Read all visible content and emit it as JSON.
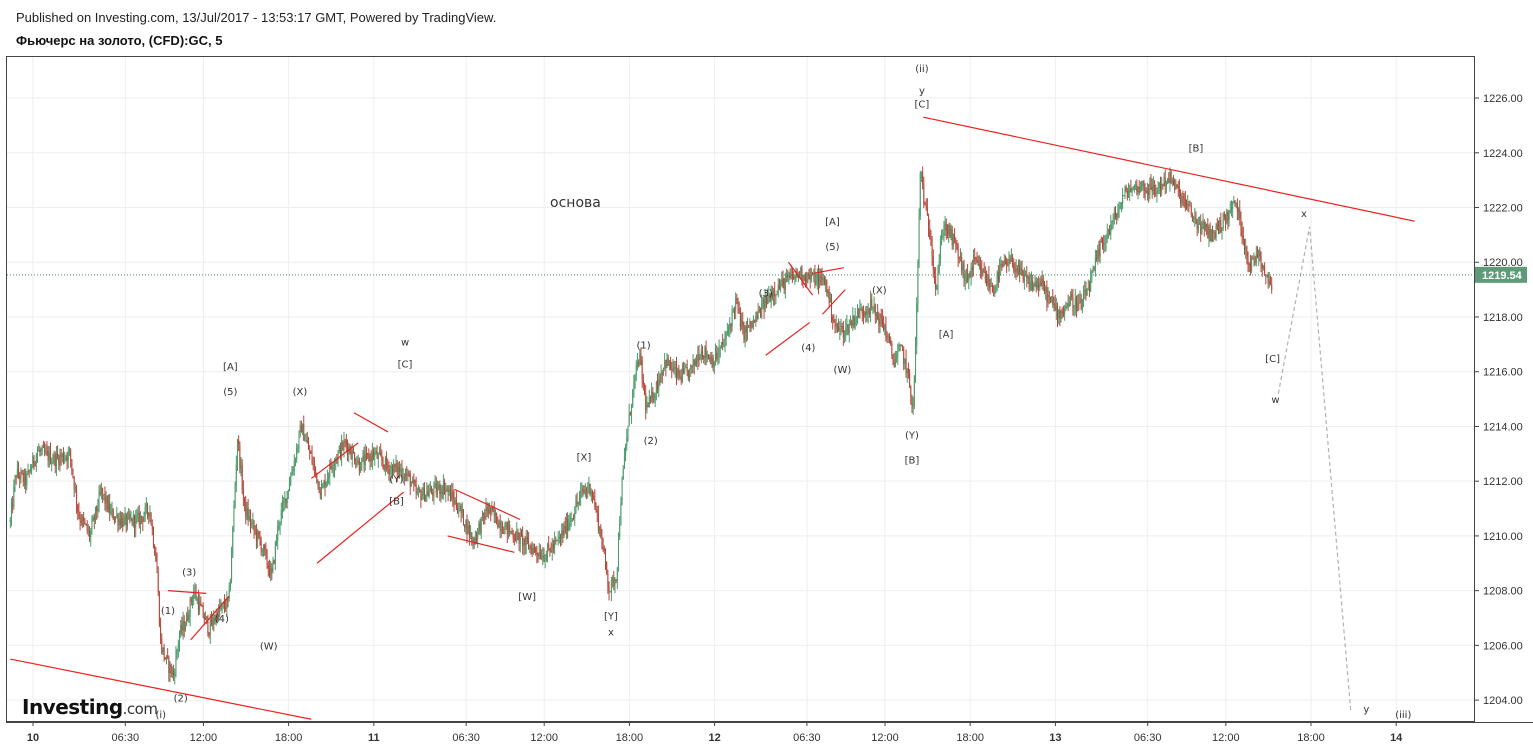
{
  "header": {
    "published": "Published on Investing.com, 13/Jul/2017 - 13:53:17 GMT, Powered by TradingView.",
    "instrument": "Фьючерс на золото, (CFD):GC, 5"
  },
  "logo": {
    "main": "Investing",
    "suffix": ".com"
  },
  "colors": {
    "up": "#4a9a6a",
    "down": "#b5473a",
    "trendline": "#e8221f",
    "price_line": "#4a8a6a",
    "badge": "#5f9b79"
  },
  "chart_data": {
    "type": "candlestick",
    "ylim": [
      1203.2,
      1227.5
    ],
    "y_ticks": [
      "1204.00",
      "1206.00",
      "1208.00",
      "1210.00",
      "1212.00",
      "1214.00",
      "1216.00",
      "1218.00",
      "1220.00",
      "1222.00",
      "1224.00",
      "1226.00"
    ],
    "x_ticks": [
      {
        "label": "10",
        "t": 0,
        "bold": true
      },
      {
        "label": "06:30",
        "t": 6.5
      },
      {
        "label": "12:00",
        "t": 12
      },
      {
        "label": "18:00",
        "t": 18
      },
      {
        "label": "11",
        "t": 24,
        "bold": true
      },
      {
        "label": "06:30",
        "t": 30.5
      },
      {
        "label": "12:00",
        "t": 36
      },
      {
        "label": "18:00",
        "t": 42
      },
      {
        "label": "12",
        "t": 48,
        "bold": true
      },
      {
        "label": "06:30",
        "t": 54.5
      },
      {
        "label": "12:00",
        "t": 60
      },
      {
        "label": "18:00",
        "t": 66
      },
      {
        "label": "13",
        "t": 72,
        "bold": true
      },
      {
        "label": "06:30",
        "t": 78.5
      },
      {
        "label": "12:00",
        "t": 84
      },
      {
        "label": "18:00",
        "t": 90
      },
      {
        "label": "14",
        "t": 96,
        "bold": true
      }
    ],
    "last_price": "1219.54",
    "last_value": 1219.54,
    "price_path": [
      [
        -1.6,
        1210.5
      ],
      [
        -1.2,
        1212.3
      ],
      [
        -0.5,
        1212.0
      ],
      [
        0.3,
        1213.1
      ],
      [
        1.5,
        1212.8
      ],
      [
        2.6,
        1213.0
      ],
      [
        3.2,
        1210.8
      ],
      [
        4.0,
        1210.0
      ],
      [
        4.8,
        1211.6
      ],
      [
        5.5,
        1210.8
      ],
      [
        6.5,
        1210.5
      ],
      [
        7.5,
        1210.6
      ],
      [
        8.2,
        1211.0
      ],
      [
        8.7,
        1209.0
      ],
      [
        9.0,
        1206.0
      ],
      [
        9.4,
        1205.4
      ],
      [
        9.9,
        1204.9
      ],
      [
        10.3,
        1206.4
      ],
      [
        10.8,
        1206.9
      ],
      [
        11.3,
        1208.0
      ],
      [
        11.9,
        1207.2
      ],
      [
        12.4,
        1206.6
      ],
      [
        13.0,
        1207.2
      ],
      [
        13.8,
        1207.6
      ],
      [
        14.1,
        1210.5
      ],
      [
        14.4,
        1213.6
      ],
      [
        14.9,
        1211.0
      ],
      [
        15.5,
        1210.3
      ],
      [
        16.2,
        1209.5
      ],
      [
        16.8,
        1208.5
      ],
      [
        17.3,
        1210.5
      ],
      [
        17.7,
        1211.2
      ],
      [
        18.3,
        1212.5
      ],
      [
        18.9,
        1214.0
      ],
      [
        19.5,
        1213.0
      ],
      [
        20.3,
        1211.6
      ],
      [
        21.0,
        1212.6
      ],
      [
        22.0,
        1213.4
      ],
      [
        23.0,
        1212.6
      ],
      [
        24.0,
        1213.0
      ],
      [
        25.0,
        1212.5
      ],
      [
        25.9,
        1212.4
      ],
      [
        26.5,
        1212.1
      ],
      [
        27.0,
        1211.5
      ],
      [
        28.0,
        1211.6
      ],
      [
        29.0,
        1211.8
      ],
      [
        30.0,
        1211.0
      ],
      [
        31.0,
        1209.8
      ],
      [
        32.0,
        1211.0
      ],
      [
        33.0,
        1210.4
      ],
      [
        34.0,
        1210.0
      ],
      [
        35.0,
        1209.6
      ],
      [
        36.0,
        1209.3
      ],
      [
        37.0,
        1209.8
      ],
      [
        38.0,
        1210.8
      ],
      [
        38.7,
        1211.6
      ],
      [
        39.3,
        1211.8
      ],
      [
        40.0,
        1210.0
      ],
      [
        40.6,
        1208.0
      ],
      [
        41.1,
        1208.6
      ],
      [
        41.4,
        1211.4
      ],
      [
        41.8,
        1213.6
      ],
      [
        42.3,
        1215.5
      ],
      [
        42.7,
        1216.6
      ],
      [
        43.2,
        1214.6
      ],
      [
        43.8,
        1215.3
      ],
      [
        44.5,
        1216.4
      ],
      [
        45.5,
        1215.8
      ],
      [
        46.3,
        1216.0
      ],
      [
        47.0,
        1216.8
      ],
      [
        48.0,
        1216.4
      ],
      [
        48.8,
        1217.2
      ],
      [
        49.5,
        1218.6
      ],
      [
        50.0,
        1217.4
      ],
      [
        50.8,
        1217.8
      ],
      [
        51.3,
        1218.3
      ],
      [
        52.0,
        1218.9
      ],
      [
        53.0,
        1219.3
      ],
      [
        54.0,
        1219.6
      ],
      [
        55.0,
        1219.4
      ],
      [
        55.8,
        1219.3
      ],
      [
        56.5,
        1217.6
      ],
      [
        57.2,
        1217.5
      ],
      [
        58.0,
        1218.1
      ],
      [
        59.0,
        1218.4
      ],
      [
        60.0,
        1217.6
      ],
      [
        60.6,
        1216.4
      ],
      [
        61.2,
        1216.8
      ],
      [
        61.7,
        1215.6
      ],
      [
        62.0,
        1214.6
      ],
      [
        62.3,
        1219.5
      ],
      [
        62.5,
        1223.6
      ],
      [
        62.8,
        1222.0
      ],
      [
        63.2,
        1221.0
      ],
      [
        63.6,
        1219.0
      ],
      [
        64.1,
        1221.4
      ],
      [
        64.6,
        1221.0
      ],
      [
        65.1,
        1220.4
      ],
      [
        65.7,
        1219.3
      ],
      [
        66.3,
        1220.0
      ],
      [
        67.0,
        1219.5
      ],
      [
        67.6,
        1219.0
      ],
      [
        68.2,
        1219.8
      ],
      [
        69.0,
        1220.0
      ],
      [
        69.7,
        1219.4
      ],
      [
        70.3,
        1219.2
      ],
      [
        71.0,
        1219.2
      ],
      [
        71.6,
        1218.6
      ],
      [
        72.3,
        1218.1
      ],
      [
        73.0,
        1218.6
      ],
      [
        73.8,
        1218.4
      ],
      [
        74.5,
        1219.3
      ],
      [
        75.2,
        1220.6
      ],
      [
        76.0,
        1221.4
      ],
      [
        77.0,
        1222.6
      ],
      [
        78.0,
        1222.8
      ],
      [
        79.0,
        1222.6
      ],
      [
        80.0,
        1223.1
      ],
      [
        80.7,
        1222.5
      ],
      [
        81.3,
        1222.0
      ],
      [
        82.0,
        1221.4
      ],
      [
        83.0,
        1221.0
      ],
      [
        84.0,
        1221.6
      ],
      [
        84.7,
        1222.2
      ],
      [
        85.2,
        1221.0
      ],
      [
        85.7,
        1219.8
      ],
      [
        86.3,
        1220.4
      ],
      [
        86.8,
        1219.6
      ],
      [
        87.3,
        1219.0
      ]
    ],
    "trendlines": [
      [
        -1.6,
        1205.5,
        19.6,
        1203.3
      ],
      [
        62.7,
        1225.3,
        97.3,
        1221.5
      ],
      [
        9.5,
        1208.0,
        12.2,
        1207.9
      ],
      [
        11.1,
        1206.2,
        13.8,
        1207.8
      ],
      [
        19.6,
        1212.1,
        22.9,
        1213.4
      ],
      [
        20.0,
        1209.0,
        26.1,
        1211.6
      ],
      [
        22.6,
        1214.5,
        25.0,
        1213.8
      ],
      [
        29.7,
        1211.7,
        34.3,
        1210.6
      ],
      [
        29.2,
        1210.0,
        33.9,
        1209.4
      ],
      [
        53.2,
        1220.0,
        54.9,
        1218.8
      ],
      [
        51.6,
        1216.6,
        54.7,
        1217.8
      ],
      [
        55.0,
        1219.6,
        57.1,
        1219.8
      ],
      [
        55.6,
        1218.1,
        57.2,
        1219.0
      ]
    ],
    "projection": [
      [
        87.7,
        1215.2
      ],
      [
        89.9,
        1221.3
      ],
      [
        92.8,
        1203.6
      ]
    ],
    "wave_labels": [
      {
        "text": "(i)",
        "t": 9.0,
        "y": 1203.5
      },
      {
        "text": "(2)",
        "t": 10.4,
        "y": 1204.1
      },
      {
        "text": "(1)",
        "t": 9.5,
        "y": 1207.3
      },
      {
        "text": "(3)",
        "t": 11.0,
        "y": 1208.7
      },
      {
        "text": "(4)",
        "t": 13.3,
        "y": 1207.0
      },
      {
        "text": "(W)",
        "t": 16.6,
        "y": 1206.0
      },
      {
        "text": "(5)",
        "t": 13.9,
        "y": 1215.3
      },
      {
        "text": "[A]",
        "t": 13.9,
        "y": 1216.2
      },
      {
        "text": "(X)",
        "t": 18.8,
        "y": 1215.3
      },
      {
        "text": "(Y)",
        "t": 25.6,
        "y": 1212.1
      },
      {
        "text": "[B]",
        "t": 25.6,
        "y": 1211.3
      },
      {
        "text": "[C]",
        "t": 26.2,
        "y": 1216.3
      },
      {
        "text": "w",
        "t": 26.2,
        "y": 1217.1
      },
      {
        "text": "[X]",
        "t": 38.8,
        "y": 1212.9
      },
      {
        "text": "[W]",
        "t": 34.8,
        "y": 1207.8
      },
      {
        "text": "[Y]",
        "t": 40.7,
        "y": 1207.1
      },
      {
        "text": "x",
        "t": 40.7,
        "y": 1206.5
      },
      {
        "text": "(1)",
        "t": 43.0,
        "y": 1217.0
      },
      {
        "text": "(2)",
        "t": 43.5,
        "y": 1213.5
      },
      {
        "text": "(3)",
        "t": 51.6,
        "y": 1218.9
      },
      {
        "text": "(4)",
        "t": 54.6,
        "y": 1216.9
      },
      {
        "text": "(5)",
        "t": 56.3,
        "y": 1220.6
      },
      {
        "text": "[A]",
        "t": 56.3,
        "y": 1221.5
      },
      {
        "text": "(X)",
        "t": 59.6,
        "y": 1219.0
      },
      {
        "text": "(W)",
        "t": 57.0,
        "y": 1216.1
      },
      {
        "text": "(Y)",
        "t": 61.9,
        "y": 1213.7
      },
      {
        "text": "[B]",
        "t": 61.9,
        "y": 1212.8
      },
      {
        "text": "(ii)",
        "t": 62.6,
        "y": 1227.1
      },
      {
        "text": "y",
        "t": 62.6,
        "y": 1226.3
      },
      {
        "text": "[C]",
        "t": 62.6,
        "y": 1225.8
      },
      {
        "text": "[A]",
        "t": 64.3,
        "y": 1217.4
      },
      {
        "text": "[B]",
        "t": 81.9,
        "y": 1224.2
      },
      {
        "text": "[C]",
        "t": 87.3,
        "y": 1216.5
      },
      {
        "text": "w",
        "t": 87.5,
        "y": 1215.0
      },
      {
        "text": "x",
        "t": 89.5,
        "y": 1221.8
      },
      {
        "text": "y",
        "t": 93.9,
        "y": 1203.7
      },
      {
        "text": "(iii)",
        "t": 96.5,
        "y": 1203.5
      }
    ],
    "annotation": {
      "text": "основа",
      "t": 38.2,
      "y": 1222.2
    }
  }
}
